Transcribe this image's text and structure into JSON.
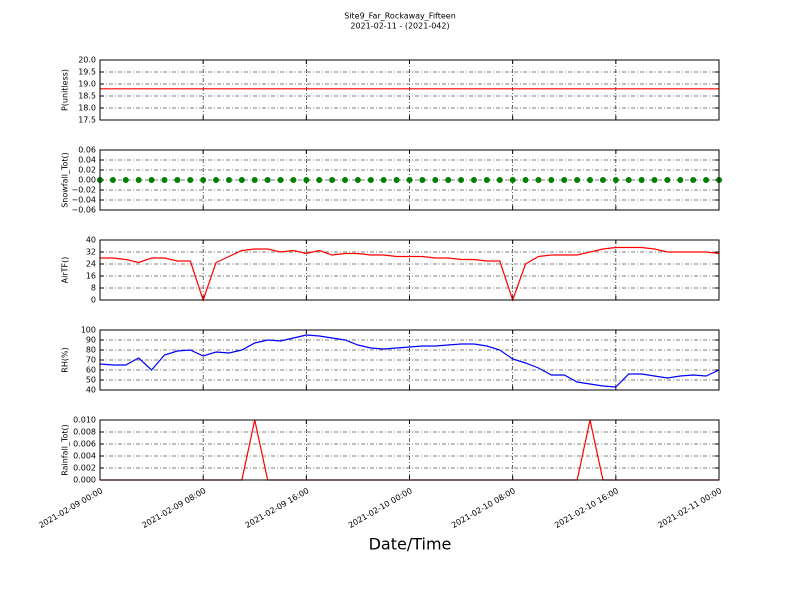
{
  "chart_data": [
    {
      "type": "line",
      "title": "Site9_Far_Rockaway_Fifteen",
      "subtitle": "2021-02-11 - (2021-042)",
      "ylabel": "P(unitless)",
      "color": "#ff0000",
      "x": [
        "2021-02-09 00:00",
        "2021-02-09 01:00",
        "2021-02-09 02:00",
        "2021-02-09 03:00",
        "2021-02-09 04:00",
        "2021-02-09 05:00",
        "2021-02-09 06:00",
        "2021-02-09 07:00",
        "2021-02-09 08:00",
        "2021-02-09 09:00",
        "2021-02-09 10:00",
        "2021-02-09 11:00",
        "2021-02-09 12:00",
        "2021-02-09 13:00",
        "2021-02-09 14:00",
        "2021-02-09 15:00",
        "2021-02-09 16:00",
        "2021-02-09 17:00",
        "2021-02-09 18:00",
        "2021-02-09 19:00",
        "2021-02-09 20:00",
        "2021-02-09 21:00",
        "2021-02-09 22:00",
        "2021-02-09 23:00",
        "2021-02-10 00:00",
        "2021-02-10 01:00",
        "2021-02-10 02:00",
        "2021-02-10 03:00",
        "2021-02-10 04:00",
        "2021-02-10 05:00",
        "2021-02-10 06:00",
        "2021-02-10 07:00",
        "2021-02-10 08:00",
        "2021-02-10 09:00",
        "2021-02-10 10:00",
        "2021-02-10 11:00",
        "2021-02-10 12:00",
        "2021-02-10 13:00",
        "2021-02-10 14:00",
        "2021-02-10 15:00",
        "2021-02-10 16:00",
        "2021-02-10 17:00",
        "2021-02-10 18:00",
        "2021-02-10 19:00",
        "2021-02-10 20:00",
        "2021-02-10 21:00",
        "2021-02-10 22:00",
        "2021-02-10 23:00",
        "2021-02-11 00:00"
      ],
      "values": [
        18.8,
        18.8,
        18.8,
        18.8,
        18.8,
        18.8,
        18.8,
        18.8,
        18.8,
        18.8,
        18.8,
        18.8,
        18.8,
        18.8,
        18.8,
        18.8,
        18.8,
        18.8,
        18.8,
        18.8,
        18.8,
        18.8,
        18.8,
        18.8,
        18.8,
        18.8,
        18.8,
        18.8,
        18.8,
        18.8,
        18.8,
        18.8,
        18.8,
        18.8,
        18.8,
        18.8,
        18.8,
        18.8,
        18.8,
        18.8,
        18.8,
        18.8,
        18.8,
        18.8,
        18.8,
        18.8,
        18.8,
        18.8,
        18.8
      ],
      "ylim": [
        17.5,
        20.0
      ],
      "yticks": [
        17.5,
        {
          "value": 18,
          "label": "18.0"
        },
        18.5,
        {
          "value": 19,
          "label": "19.0"
        },
        19.5,
        {
          "value": 20,
          "label": "20.0"
        }
      ],
      "grid": true
    },
    {
      "type": "scatter",
      "ylabel": "Snowfall_Tot()",
      "color": "#008000",
      "x": [
        "2021-02-09 00:00",
        "2021-02-09 01:00",
        "2021-02-09 02:00",
        "2021-02-09 03:00",
        "2021-02-09 04:00",
        "2021-02-09 05:00",
        "2021-02-09 06:00",
        "2021-02-09 07:00",
        "2021-02-09 08:00",
        "2021-02-09 09:00",
        "2021-02-09 10:00",
        "2021-02-09 11:00",
        "2021-02-09 12:00",
        "2021-02-09 13:00",
        "2021-02-09 14:00",
        "2021-02-09 15:00",
        "2021-02-09 16:00",
        "2021-02-09 17:00",
        "2021-02-09 18:00",
        "2021-02-09 19:00",
        "2021-02-09 20:00",
        "2021-02-09 21:00",
        "2021-02-09 22:00",
        "2021-02-09 23:00",
        "2021-02-10 00:00",
        "2021-02-10 01:00",
        "2021-02-10 02:00",
        "2021-02-10 03:00",
        "2021-02-10 04:00",
        "2021-02-10 05:00",
        "2021-02-10 06:00",
        "2021-02-10 07:00",
        "2021-02-10 08:00",
        "2021-02-10 09:00",
        "2021-02-10 10:00",
        "2021-02-10 11:00",
        "2021-02-10 12:00",
        "2021-02-10 13:00",
        "2021-02-10 14:00",
        "2021-02-10 15:00",
        "2021-02-10 16:00",
        "2021-02-10 17:00",
        "2021-02-10 18:00",
        "2021-02-10 19:00",
        "2021-02-10 20:00",
        "2021-02-10 21:00",
        "2021-02-10 22:00",
        "2021-02-10 23:00",
        "2021-02-11 00:00"
      ],
      "values": [
        0,
        0,
        0,
        0,
        0,
        0,
        0,
        0,
        0,
        0,
        0,
        0,
        0,
        0,
        0,
        0,
        0,
        0,
        0,
        0,
        0,
        0,
        0,
        0,
        0,
        0,
        0,
        0,
        0,
        0,
        0,
        0,
        0,
        0,
        0,
        0,
        0,
        0,
        0,
        0,
        0,
        0,
        0,
        0,
        0,
        0,
        0,
        0,
        0
      ],
      "ylim": [
        -0.06,
        0.06
      ],
      "yticks": [
        {
          "value": -0.06,
          "label": "−0.06"
        },
        {
          "value": -0.04,
          "label": "−0.04"
        },
        {
          "value": -0.02,
          "label": "−0.02"
        },
        {
          "value": 0,
          "label": "0.00"
        },
        0.02,
        0.04,
        0.06
      ],
      "grid": true
    },
    {
      "type": "line",
      "ylabel": "AirTF()",
      "color": "#ff0000",
      "x": [
        "2021-02-09 00:00",
        "2021-02-09 01:00",
        "2021-02-09 02:00",
        "2021-02-09 03:00",
        "2021-02-09 04:00",
        "2021-02-09 05:00",
        "2021-02-09 06:00",
        "2021-02-09 07:00",
        "2021-02-09 08:00",
        "2021-02-09 09:00",
        "2021-02-09 10:00",
        "2021-02-09 11:00",
        "2021-02-09 12:00",
        "2021-02-09 13:00",
        "2021-02-09 14:00",
        "2021-02-09 15:00",
        "2021-02-09 16:00",
        "2021-02-09 17:00",
        "2021-02-09 18:00",
        "2021-02-09 19:00",
        "2021-02-09 20:00",
        "2021-02-09 21:00",
        "2021-02-09 22:00",
        "2021-02-09 23:00",
        "2021-02-10 00:00",
        "2021-02-10 01:00",
        "2021-02-10 02:00",
        "2021-02-10 03:00",
        "2021-02-10 04:00",
        "2021-02-10 05:00",
        "2021-02-10 06:00",
        "2021-02-10 07:00",
        "2021-02-10 08:00",
        "2021-02-10 09:00",
        "2021-02-10 10:00",
        "2021-02-10 11:00",
        "2021-02-10 12:00",
        "2021-02-10 13:00",
        "2021-02-10 14:00",
        "2021-02-10 15:00",
        "2021-02-10 16:00",
        "2021-02-10 17:00",
        "2021-02-10 18:00",
        "2021-02-10 19:00",
        "2021-02-10 20:00",
        "2021-02-10 21:00",
        "2021-02-10 22:00",
        "2021-02-10 23:00",
        "2021-02-11 00:00"
      ],
      "values": [
        28,
        28,
        27,
        25,
        28,
        28,
        26,
        26,
        0,
        25,
        29,
        33,
        34,
        34,
        32,
        33,
        31,
        33,
        30,
        31,
        31,
        30,
        30,
        29,
        29,
        29,
        28,
        28,
        27,
        27,
        26,
        26,
        0,
        24,
        29,
        30,
        30,
        30,
        32,
        34,
        35,
        35,
        35,
        34,
        32,
        32,
        32,
        32,
        31
      ],
      "ylim": [
        0,
        40
      ],
      "yticks": [
        0,
        8,
        16,
        24,
        32,
        40
      ],
      "grid": true
    },
    {
      "type": "line",
      "ylabel": "RH(%)",
      "color": "#0000ff",
      "x": [
        "2021-02-09 00:00",
        "2021-02-09 01:00",
        "2021-02-09 02:00",
        "2021-02-09 03:00",
        "2021-02-09 04:00",
        "2021-02-09 05:00",
        "2021-02-09 06:00",
        "2021-02-09 07:00",
        "2021-02-09 08:00",
        "2021-02-09 09:00",
        "2021-02-09 10:00",
        "2021-02-09 11:00",
        "2021-02-09 12:00",
        "2021-02-09 13:00",
        "2021-02-09 14:00",
        "2021-02-09 15:00",
        "2021-02-09 16:00",
        "2021-02-09 17:00",
        "2021-02-09 18:00",
        "2021-02-09 19:00",
        "2021-02-09 20:00",
        "2021-02-09 21:00",
        "2021-02-09 22:00",
        "2021-02-09 23:00",
        "2021-02-10 00:00",
        "2021-02-10 01:00",
        "2021-02-10 02:00",
        "2021-02-10 03:00",
        "2021-02-10 04:00",
        "2021-02-10 05:00",
        "2021-02-10 06:00",
        "2021-02-10 07:00",
        "2021-02-10 08:00",
        "2021-02-10 09:00",
        "2021-02-10 10:00",
        "2021-02-10 11:00",
        "2021-02-10 12:00",
        "2021-02-10 13:00",
        "2021-02-10 14:00",
        "2021-02-10 15:00",
        "2021-02-10 16:00",
        "2021-02-10 17:00",
        "2021-02-10 18:00",
        "2021-02-10 19:00",
        "2021-02-10 20:00",
        "2021-02-10 21:00",
        "2021-02-10 22:00",
        "2021-02-10 23:00",
        "2021-02-11 00:00"
      ],
      "values": [
        66,
        65,
        65,
        72,
        60,
        75,
        79,
        80,
        74,
        78,
        77,
        80,
        87,
        90,
        89,
        92,
        95,
        94,
        92,
        90,
        85,
        82,
        81,
        82,
        83,
        84,
        84,
        85,
        86,
        86,
        84,
        80,
        71,
        67,
        62,
        55,
        55,
        48,
        46,
        44,
        43,
        56,
        56,
        54,
        52,
        54,
        55,
        54,
        60
      ],
      "ylim": [
        40,
        100
      ],
      "yticks": [
        40,
        50,
        60,
        70,
        80,
        90,
        100
      ],
      "grid": true
    },
    {
      "type": "line",
      "ylabel": "Rainfall_Tot()",
      "xlabel": "Date/Time",
      "color": "#ff0000",
      "x": [
        "2021-02-09 00:00",
        "2021-02-09 01:00",
        "2021-02-09 02:00",
        "2021-02-09 03:00",
        "2021-02-09 04:00",
        "2021-02-09 05:00",
        "2021-02-09 06:00",
        "2021-02-09 07:00",
        "2021-02-09 08:00",
        "2021-02-09 09:00",
        "2021-02-09 10:00",
        "2021-02-09 11:00",
        "2021-02-09 12:00",
        "2021-02-09 13:00",
        "2021-02-09 14:00",
        "2021-02-09 15:00",
        "2021-02-09 16:00",
        "2021-02-09 17:00",
        "2021-02-09 18:00",
        "2021-02-09 19:00",
        "2021-02-09 20:00",
        "2021-02-09 21:00",
        "2021-02-09 22:00",
        "2021-02-09 23:00",
        "2021-02-10 00:00",
        "2021-02-10 01:00",
        "2021-02-10 02:00",
        "2021-02-10 03:00",
        "2021-02-10 04:00",
        "2021-02-10 05:00",
        "2021-02-10 06:00",
        "2021-02-10 07:00",
        "2021-02-10 08:00",
        "2021-02-10 09:00",
        "2021-02-10 10:00",
        "2021-02-10 11:00",
        "2021-02-10 12:00",
        "2021-02-10 13:00",
        "2021-02-10 14:00",
        "2021-02-10 15:00",
        "2021-02-10 16:00",
        "2021-02-10 17:00",
        "2021-02-10 18:00",
        "2021-02-10 19:00",
        "2021-02-10 20:00",
        "2021-02-10 21:00",
        "2021-02-10 22:00",
        "2021-02-10 23:00",
        "2021-02-11 00:00"
      ],
      "values": [
        0,
        0,
        0,
        0,
        0,
        0,
        0,
        0,
        0,
        0,
        0,
        0,
        0.01,
        0,
        0,
        0,
        0,
        0,
        0,
        0,
        0,
        0,
        0,
        0,
        0,
        0,
        0,
        0,
        0,
        0,
        0,
        0,
        0,
        0,
        0,
        0,
        0,
        0,
        0.01,
        0,
        0,
        0,
        0,
        0,
        0,
        0,
        0,
        0,
        0
      ],
      "ylim": [
        0,
        0.01
      ],
      "yticks": [
        {
          "value": 0,
          "label": "0.000"
        },
        {
          "value": 0.002,
          "label": "0.002"
        },
        {
          "value": 0.004,
          "label": "0.004"
        },
        {
          "value": 0.006,
          "label": "0.006"
        },
        {
          "value": 0.008,
          "label": "0.008"
        },
        {
          "value": 0.01,
          "label": "0.010"
        }
      ],
      "grid": true,
      "xlim": [
        "2021-02-09 00:00",
        "2021-02-11 00:00"
      ],
      "xticks": [
        "2021-02-09 00:00",
        "2021-02-09 08:00",
        "2021-02-09 16:00",
        "2021-02-10 00:00",
        "2021-02-10 08:00",
        "2021-02-10 16:00",
        "2021-02-11 00:00"
      ]
    }
  ]
}
